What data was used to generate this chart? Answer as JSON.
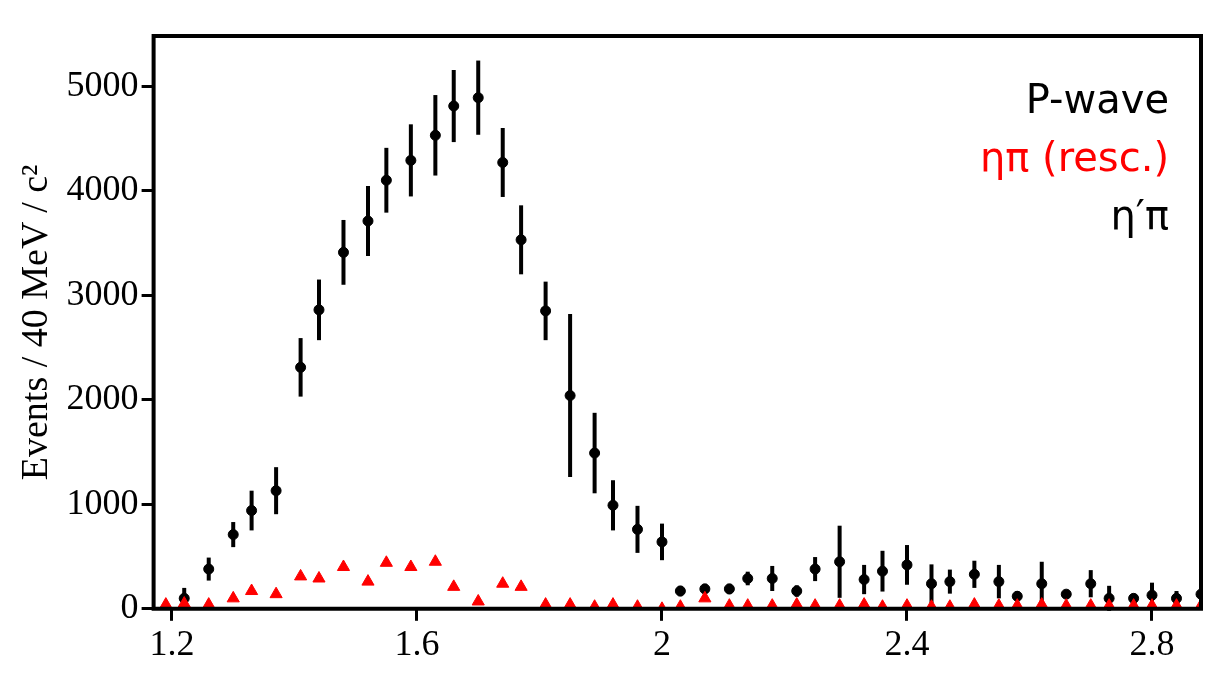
{
  "chart_data": {
    "type": "scatter",
    "ylabel": "Events / 40 MeV / c²",
    "legend_title": "P-wave",
    "legend": "top right",
    "grid": false,
    "xlim": [
      1.17,
      2.88
    ],
    "xticks": [
      1.2,
      1.6,
      2,
      2.4,
      2.8
    ],
    "ylim": [
      0,
      5480
    ],
    "yticks": [
      0,
      1000,
      2000,
      3000,
      4000,
      5000
    ],
    "series": [
      {
        "name": "ηπ (resc.)",
        "color": "#ff0000",
        "marker": "triangle",
        "x": [
          1.19,
          1.22,
          1.26,
          1.3,
          1.33,
          1.37,
          1.41,
          1.44,
          1.48,
          1.52,
          1.55,
          1.59,
          1.63,
          1.66,
          1.7,
          1.74,
          1.77,
          1.81,
          1.85,
          1.89,
          1.92,
          1.96,
          2.0,
          2.03,
          2.07,
          2.11,
          2.14,
          2.18,
          2.22,
          2.25,
          2.29,
          2.33,
          2.36,
          2.4,
          2.44,
          2.47,
          2.51,
          2.55,
          2.58,
          2.62,
          2.66,
          2.7,
          2.73,
          2.77,
          2.8,
          2.84,
          2.88
        ],
        "values": [
          40,
          50,
          40,
          100,
          170,
          140,
          310,
          290,
          400,
          260,
          440,
          400,
          450,
          210,
          70,
          240,
          210,
          40,
          40,
          20,
          40,
          20,
          0,
          20,
          100,
          30,
          30,
          30,
          40,
          30,
          30,
          40,
          20,
          30,
          20,
          20,
          40,
          30,
          30,
          40,
          30,
          30,
          30,
          30,
          30,
          30,
          30
        ]
      },
      {
        "name": "η′π",
        "color": "#000000",
        "marker": "circle",
        "x": [
          1.22,
          1.26,
          1.3,
          1.33,
          1.37,
          1.41,
          1.44,
          1.48,
          1.52,
          1.55,
          1.59,
          1.63,
          1.66,
          1.7,
          1.74,
          1.77,
          1.81,
          1.85,
          1.89,
          1.92,
          1.96,
          2.0,
          2.03,
          2.07,
          2.11,
          2.14,
          2.18,
          2.22,
          2.25,
          2.29,
          2.33,
          2.36,
          2.4,
          2.44,
          2.47,
          2.51,
          2.55,
          2.58,
          2.62,
          2.66,
          2.7,
          2.73,
          2.77,
          2.8,
          2.84,
          2.88
        ],
        "values": [
          100,
          380,
          710,
          940,
          1130,
          2310,
          2860,
          3410,
          3710,
          4100,
          4290,
          4530,
          4810,
          4890,
          4270,
          3530,
          2850,
          2040,
          1490,
          990,
          760,
          640,
          170,
          190,
          190,
          290,
          290,
          170,
          380,
          450,
          280,
          360,
          420,
          240,
          260,
          330,
          260,
          120,
          240,
          140,
          240,
          100,
          100,
          130,
          100,
          140
        ],
        "errors": [
          100,
          110,
          120,
          190,
          225,
          280,
          290,
          310,
          335,
          310,
          345,
          385,
          345,
          355,
          330,
          330,
          280,
          780,
          385,
          240,
          225,
          175,
          50,
          50,
          50,
          65,
          120,
          55,
          115,
          345,
          140,
          195,
          190,
          185,
          115,
          130,
          160,
          50,
          210,
          40,
          130,
          120,
          40,
          120,
          70,
          60
        ]
      }
    ]
  }
}
